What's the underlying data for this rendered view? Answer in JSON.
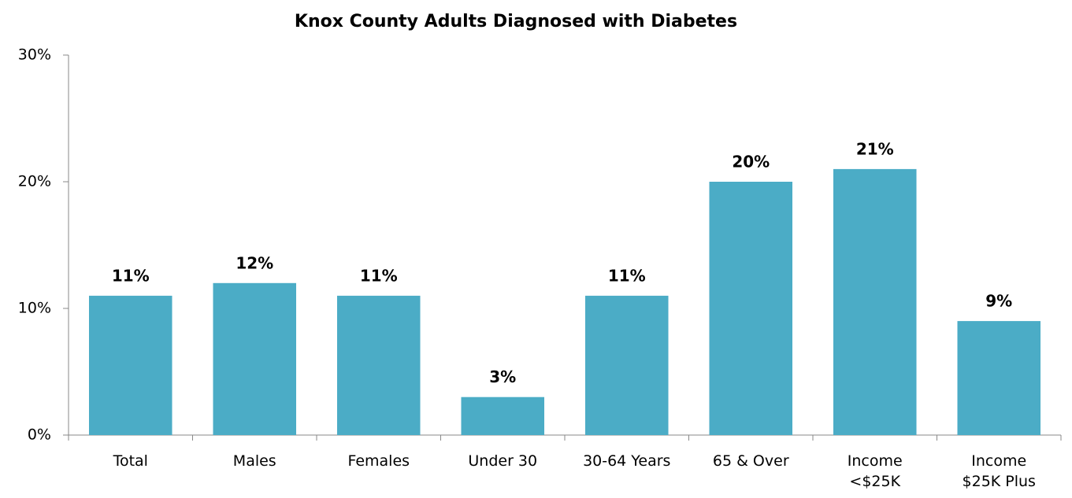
{
  "chart_data": {
    "type": "bar",
    "title": "Knox County Adults Diagnosed with Diabetes",
    "categories": [
      "Total",
      "Males",
      "Females",
      "Under 30",
      "30-64 Years",
      "65 & Over",
      "Income <$25K",
      "Income $25K Plus"
    ],
    "values": [
      11,
      12,
      11,
      3,
      11,
      20,
      21,
      9
    ],
    "value_labels": [
      "11%",
      "12%",
      "11%",
      "3%",
      "11%",
      "20%",
      "21%",
      "9%"
    ],
    "color": "#4bacc6",
    "ylim": [
      0,
      30
    ],
    "yticks": [
      {
        "value": 0,
        "label": "0%"
      },
      {
        "value": 10,
        "label": "10%"
      },
      {
        "value": 20,
        "label": "20%"
      },
      {
        "value": 30,
        "label": "30%"
      }
    ],
    "grid": false
  }
}
